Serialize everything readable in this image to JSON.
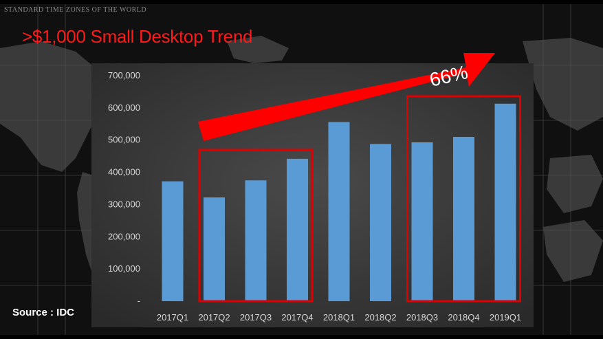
{
  "slide": {
    "title": ">$1,000 Small Desktop Trend",
    "map_caption": "STANDARD TIME ZONES OF THE WORLD",
    "source": "Source : IDC"
  },
  "colors": {
    "title": "#ff1a1a",
    "bar": "#5b9bd5",
    "highlight": "#e00000",
    "arrow": "#ff0000",
    "plot_background": "#383838"
  },
  "chart_data": {
    "type": "bar",
    "categories": [
      "2017Q1",
      "2017Q2",
      "2017Q3",
      "2017Q4",
      "2018Q1",
      "2018Q2",
      "2018Q3",
      "2018Q4",
      "2019Q1"
    ],
    "values": [
      372000,
      322000,
      375000,
      442000,
      556000,
      488000,
      493000,
      510000,
      613000
    ],
    "ylim": [
      0,
      700000
    ],
    "y_ticks": [
      0,
      100000,
      200000,
      300000,
      400000,
      500000,
      600000,
      700000
    ],
    "y_tick_labels": [
      "-",
      "100,000",
      "200,000",
      "300,000",
      "400,000",
      "500,000",
      "600,000",
      "700,000"
    ],
    "title": "",
    "xlabel": "",
    "ylabel": "",
    "grid": false,
    "legend": "none",
    "annotations": {
      "growth_label": "66%",
      "highlight_groups": [
        [
          "2017Q2",
          "2017Q3",
          "2017Q4"
        ],
        [
          "2018Q3",
          "2018Q4",
          "2019Q1"
        ]
      ]
    }
  }
}
